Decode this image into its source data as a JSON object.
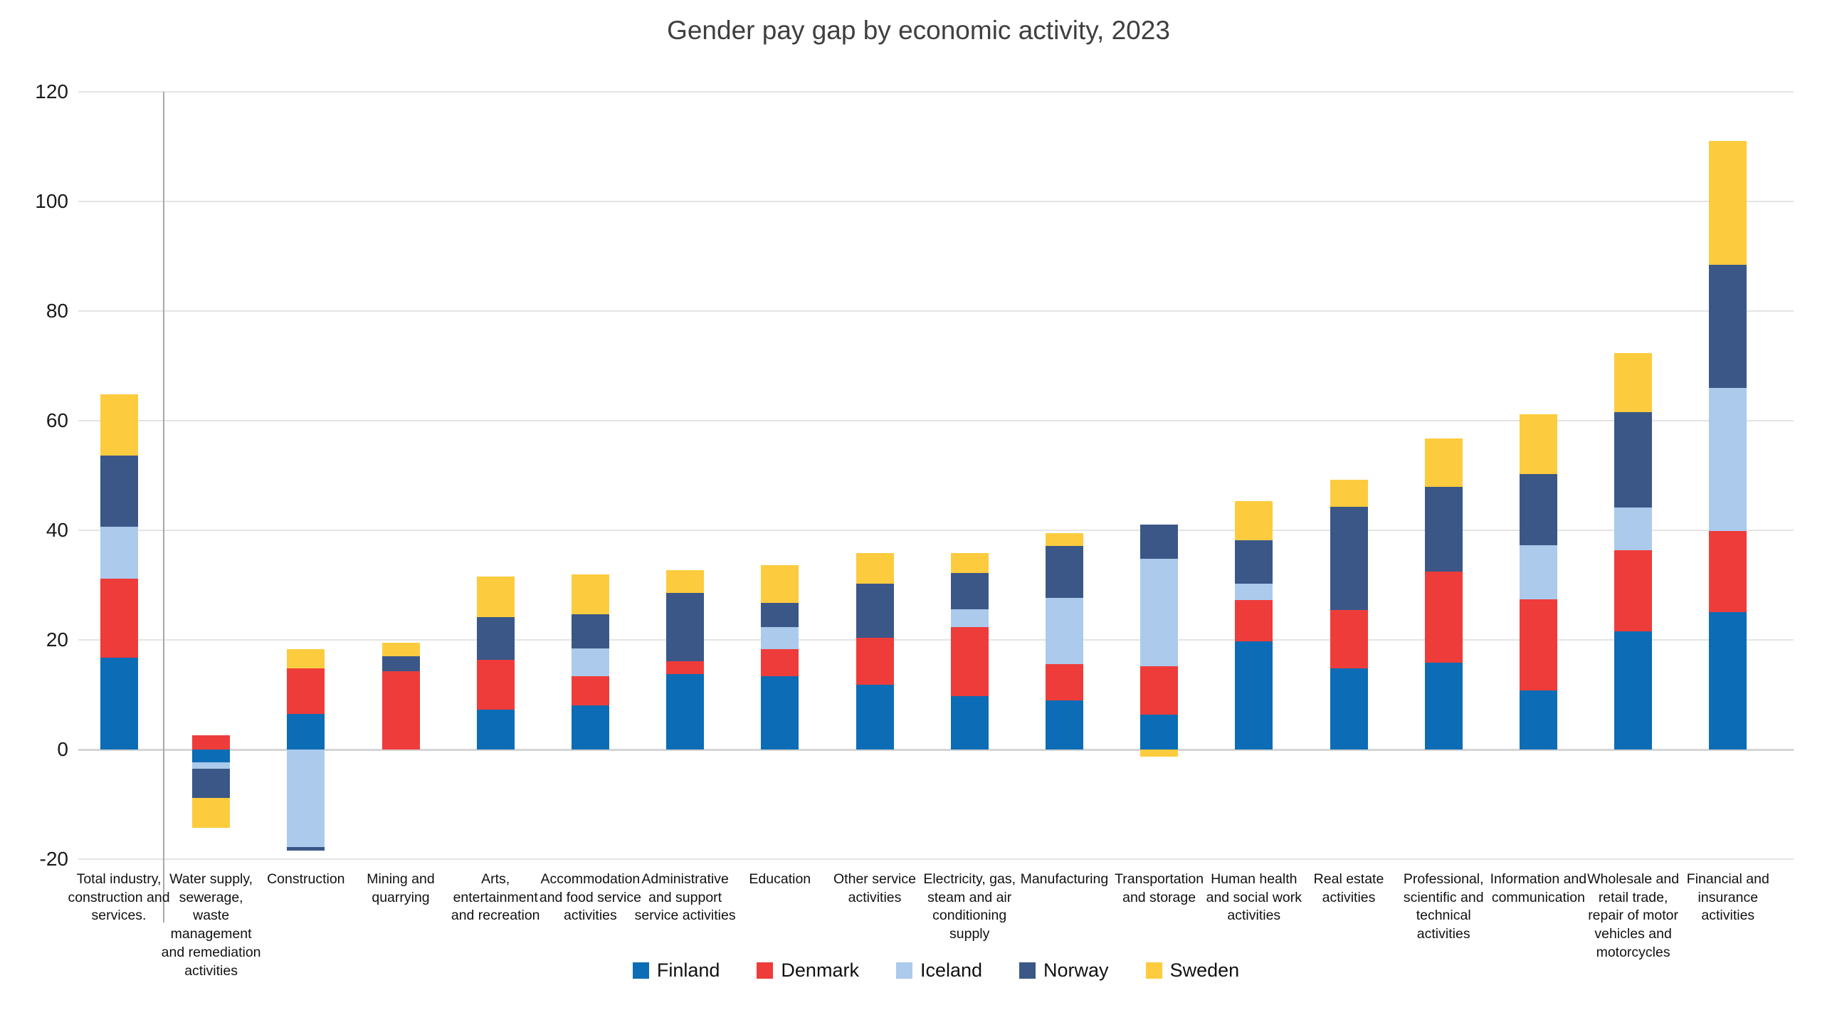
{
  "title": "Gender pay gap by economic activity, 2023",
  "chart_data": {
    "type": "bar",
    "stacked": true,
    "title": "Gender pay gap by economic activity, 2023",
    "xlabel": "",
    "ylabel": "",
    "ylim": [
      -20,
      120
    ],
    "yticks": [
      120,
      100,
      80,
      60,
      40,
      20,
      0,
      -20
    ],
    "grid": true,
    "legend_position": "bottom",
    "separator_after_first_category": true,
    "categories": [
      "Total industry, construction and services.",
      "Water supply, sewerage, waste management and remediation activities",
      "Construction",
      "Mining and quarrying",
      "Arts, entertainment and recreation",
      "Accommodation and food service activities",
      "Administrative and support service activities",
      "Education",
      "Other service activities",
      "Electricity, gas, steam and air conditioning supply",
      "Manufacturing",
      "Transportation and storage",
      "Human health and social work activities",
      "Real estate activities",
      "Professional, scientific and technical activities",
      "Information and communication",
      "Wholesale and retail trade, repair of motor vehicles and motorcycles",
      "Financial and insurance activities"
    ],
    "series": [
      {
        "name": "Finland",
        "color": "#0C6CB5",
        "values": [
          16.8,
          -2.3,
          6.5,
          0,
          7.3,
          8.1,
          13.8,
          13.4,
          11.8,
          9.7,
          9.0,
          6.4,
          19.8,
          14.8,
          15.9,
          10.8,
          21.5,
          25.1
        ]
      },
      {
        "name": "Denmark",
        "color": "#EE3C3B",
        "values": [
          14.4,
          2.6,
          8.3,
          14.3,
          9.0,
          5.3,
          2.3,
          4.9,
          8.6,
          12.7,
          6.6,
          8.8,
          7.5,
          10.6,
          16.6,
          16.6,
          14.9,
          14.8
        ]
      },
      {
        "name": "Iceland",
        "color": "#ABCAEC",
        "values": [
          9.4,
          -1.2,
          -17.8,
          0,
          0,
          5.0,
          0,
          4.0,
          0,
          3.2,
          12.1,
          19.6,
          3.0,
          0,
          0,
          9.9,
          7.7,
          26.1
        ]
      },
      {
        "name": "Norway",
        "color": "#3A5787",
        "values": [
          13.0,
          -5.3,
          -0.6,
          2.7,
          7.9,
          6.3,
          12.5,
          4.4,
          9.9,
          6.6,
          9.5,
          6.3,
          7.9,
          18.9,
          15.4,
          13.0,
          17.5,
          22.5
        ]
      },
      {
        "name": "Sweden",
        "color": "#FDCB3E",
        "values": [
          11.2,
          -5.5,
          3.5,
          2.5,
          7.4,
          7.2,
          4.1,
          6.9,
          5.6,
          3.7,
          2.3,
          -1.3,
          7.1,
          4.9,
          8.8,
          10.9,
          10.7,
          22.6
        ]
      }
    ]
  }
}
